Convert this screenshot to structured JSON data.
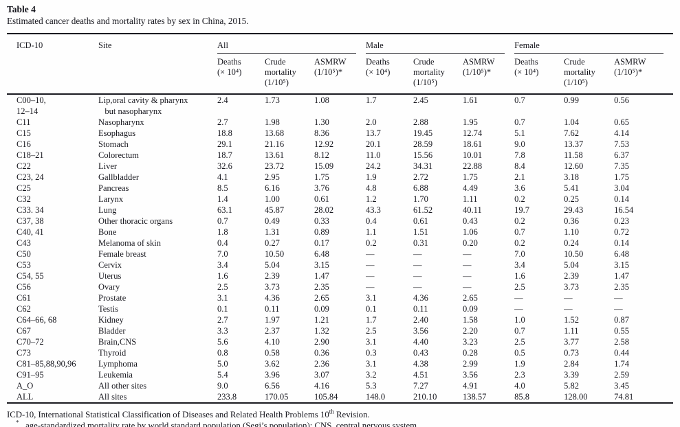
{
  "title": "Table 4",
  "caption": "Estimated cancer deaths and mortality rates by sex in China, 2015.",
  "table": {
    "header": {
      "icd": "ICD-10",
      "site": "Site",
      "groups": [
        "All",
        "Male",
        "Female"
      ],
      "subcolumns": [
        {
          "key": "deaths",
          "text": "Deaths\n(× 10⁴)"
        },
        {
          "key": "crude-mortality",
          "text": "Crude\nmortality\n(1/10⁵)"
        },
        {
          "key": "asmrw",
          "text": "ASMRW\n(1/10⁵)*"
        }
      ]
    },
    "rows": [
      {
        "icd": "C00–10,\n12–14",
        "site": "Lip,oral cavity & pharynx\n   but nasopharynx",
        "v": [
          "2.4",
          "1.73",
          "1.08",
          "1.7",
          "2.45",
          "1.61",
          "0.7",
          "0.99",
          "0.56"
        ]
      },
      {
        "icd": "C11",
        "site": "Nasopharynx",
        "v": [
          "2.7",
          "1.98",
          "1.30",
          "2.0",
          "2.88",
          "1.95",
          "0.7",
          "1.04",
          "0.65"
        ]
      },
      {
        "icd": "C15",
        "site": "Esophagus",
        "v": [
          "18.8",
          "13.68",
          "8.36",
          "13.7",
          "19.45",
          "12.74",
          "5.1",
          "7.62",
          "4.14"
        ]
      },
      {
        "icd": "C16",
        "site": "Stomach",
        "v": [
          "29.1",
          "21.16",
          "12.92",
          "20.1",
          "28.59",
          "18.61",
          "9.0",
          "13.37",
          "7.53"
        ]
      },
      {
        "icd": "C18–21",
        "site": "Colorectum",
        "v": [
          "18.7",
          "13.61",
          "8.12",
          "11.0",
          "15.56",
          "10.01",
          "7.8",
          "11.58",
          "6.37"
        ]
      },
      {
        "icd": "C22",
        "site": "Liver",
        "v": [
          "32.6",
          "23.72",
          "15.09",
          "24.2",
          "34.31",
          "22.88",
          "8.4",
          "12.60",
          "7.35"
        ]
      },
      {
        "icd": "C23, 24",
        "site": "Gallbladder",
        "v": [
          "4.1",
          "2.95",
          "1.75",
          "1.9",
          "2.72",
          "1.75",
          "2.1",
          "3.18",
          "1.75"
        ]
      },
      {
        "icd": "C25",
        "site": "Pancreas",
        "v": [
          "8.5",
          "6.16",
          "3.76",
          "4.8",
          "6.88",
          "4.49",
          "3.6",
          "5.41",
          "3.04"
        ]
      },
      {
        "icd": "C32",
        "site": "Larynx",
        "v": [
          "1.4",
          "1.00",
          "0.61",
          "1.2",
          "1.70",
          "1.11",
          "0.2",
          "0.25",
          "0.14"
        ]
      },
      {
        "icd": "C33. 34",
        "site": "Lung",
        "v": [
          "63.1",
          "45.87",
          "28.02",
          "43.3",
          "61.52",
          "40.11",
          "19.7",
          "29.43",
          "16.54"
        ]
      },
      {
        "icd": "C37, 38",
        "site": "Other thoracic organs",
        "v": [
          "0.7",
          "0.49",
          "0.33",
          "0.4",
          "0.61",
          "0.43",
          "0.2",
          "0.36",
          "0.23"
        ]
      },
      {
        "icd": "C40, 41",
        "site": "Bone",
        "v": [
          "1.8",
          "1.31",
          "0.89",
          "1.1",
          "1.51",
          "1.06",
          "0.7",
          "1.10",
          "0.72"
        ]
      },
      {
        "icd": "C43",
        "site": "Melanoma of skin",
        "v": [
          "0.4",
          "0.27",
          "0.17",
          "0.2",
          "0.31",
          "0.20",
          "0.2",
          "0.24",
          "0.14"
        ]
      },
      {
        "icd": "C50",
        "site": "Female breast",
        "v": [
          "7.0",
          "10.50",
          "6.48",
          "—",
          "—",
          "—",
          "7.0",
          "10.50",
          "6.48"
        ]
      },
      {
        "icd": "C53",
        "site": "Cervix",
        "v": [
          "3.4",
          "5.04",
          "3.15",
          "—",
          "—",
          "—",
          "3.4",
          "5.04",
          "3.15"
        ]
      },
      {
        "icd": "C54, 55",
        "site": "Uterus",
        "v": [
          "1.6",
          "2.39",
          "1.47",
          "—",
          "—",
          "—",
          "1.6",
          "2.39",
          "1.47"
        ]
      },
      {
        "icd": "C56",
        "site": "Ovary",
        "v": [
          "2.5",
          "3.73",
          "2.35",
          "—",
          "—",
          "—",
          "2.5",
          "3.73",
          "2.35"
        ]
      },
      {
        "icd": "C61",
        "site": "Prostate",
        "v": [
          "3.1",
          "4.36",
          "2.65",
          "3.1",
          "4.36",
          "2.65",
          "—",
          "—",
          "—"
        ]
      },
      {
        "icd": "C62",
        "site": "Testis",
        "v": [
          "0.1",
          "0.11",
          "0.09",
          "0.1",
          "0.11",
          "0.09",
          "—",
          "—",
          "—"
        ]
      },
      {
        "icd": "C64–66, 68",
        "site": "Kidney",
        "v": [
          "2.7",
          "1.97",
          "1.21",
          "1.7",
          "2.40",
          "1.58",
          "1.0",
          "1.52",
          "0.87"
        ]
      },
      {
        "icd": "C67",
        "site": "Bladder",
        "v": [
          "3.3",
          "2.37",
          "1.32",
          "2.5",
          "3.56",
          "2.20",
          "0.7",
          "1.11",
          "0.55"
        ]
      },
      {
        "icd": "C70–72",
        "site": "Brain,CNS",
        "v": [
          "5.6",
          "4.10",
          "2.90",
          "3.1",
          "4.40",
          "3.23",
          "2.5",
          "3.77",
          "2.58"
        ]
      },
      {
        "icd": "C73",
        "site": "Thyroid",
        "v": [
          "0.8",
          "0.58",
          "0.36",
          "0.3",
          "0.43",
          "0.28",
          "0.5",
          "0.73",
          "0.44"
        ]
      },
      {
        "icd": "C81–85,88,90,96",
        "site": "Lymphoma",
        "v": [
          "5.0",
          "3.62",
          "2.36",
          "3.1",
          "4.38",
          "2.99",
          "1.9",
          "2.84",
          "1.74"
        ]
      },
      {
        "icd": "C91–95",
        "site": "Leukemia",
        "v": [
          "5.4",
          "3.96",
          "3.07",
          "3.2",
          "4.51",
          "3.56",
          "2.3",
          "3.39",
          "2.59"
        ]
      },
      {
        "icd": "A_O",
        "site": "All other sites",
        "v": [
          "9.0",
          "6.56",
          "4.16",
          "5.3",
          "7.27",
          "4.91",
          "4.0",
          "5.82",
          "3.45"
        ]
      },
      {
        "icd": "ALL",
        "site": "All sites",
        "v": [
          "233.8",
          "170.05",
          "105.84",
          "148.0",
          "210.10",
          "138.57",
          "85.8",
          "128.00",
          "74.81"
        ]
      }
    ]
  },
  "footnotes": {
    "line1_pre": "ICD-10, International Statistical Classification of Diseases and Related Health Problems 10",
    "line1_sup": "th",
    "line1_post": " Revision.",
    "line2_sup": "*",
    "line2_post": " , age-standardized mortality rate by world standard population (Segi’s population); CNS, central nervous system."
  },
  "colors": {
    "ink": "#17171e",
    "background": "#fefefe"
  }
}
